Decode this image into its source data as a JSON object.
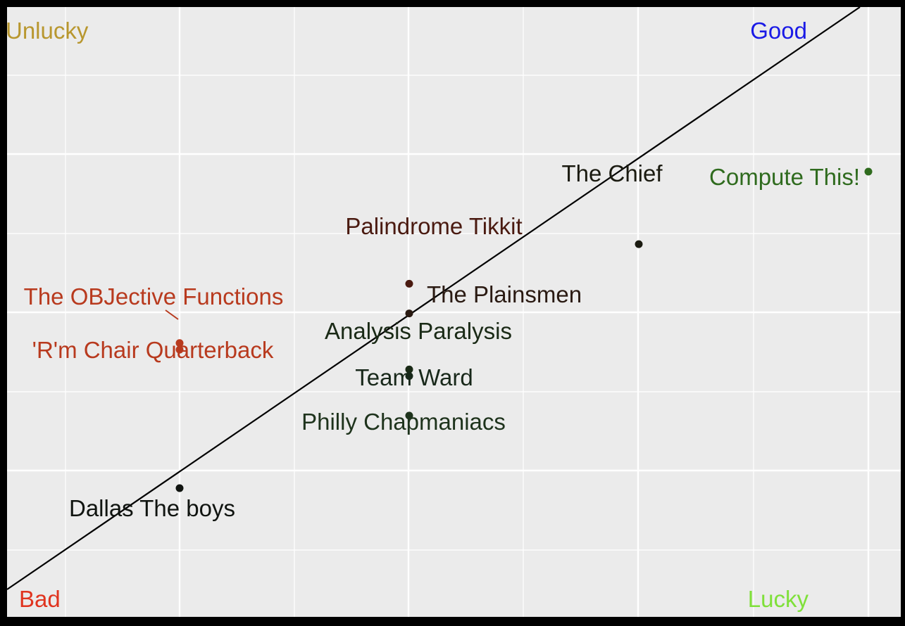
{
  "chart_data": {
    "type": "scatter",
    "title": "",
    "xlabel": "",
    "ylabel": "",
    "grid": true,
    "reference_line": {
      "slope": 1,
      "intercept": 0
    },
    "corner_labels": [
      {
        "text": "Unlucky",
        "color": "#B8972F",
        "corner": "top-left"
      },
      {
        "text": "Good",
        "color": "#1A1AE6",
        "corner": "top-right"
      },
      {
        "text": "Bad",
        "color": "#E0341F",
        "corner": "bottom-left"
      },
      {
        "text": "Lucky",
        "color": "#7FE03A",
        "corner": "bottom-right"
      }
    ],
    "points": [
      {
        "label": "Compute This!",
        "x": 10.0,
        "y": 10.3,
        "color": "#2F6B1E"
      },
      {
        "label": "The Chief",
        "x": 9.0,
        "y": 9.2,
        "color": "#1A1A10"
      },
      {
        "label": "Palindrome Tikkit",
        "x": 8.0,
        "y": 8.6,
        "color": "#4A1A10"
      },
      {
        "label": "The Plainsmen",
        "x": 8.0,
        "y": 8.15,
        "color": "#2A1A12"
      },
      {
        "label": "Analysis Paralysis",
        "x": 8.0,
        "y": 7.3,
        "color": "#1A2A16"
      },
      {
        "label": "Team Ward",
        "x": 8.0,
        "y": 7.2,
        "color": "#18281A"
      },
      {
        "label": "Philly Chapmaniacs",
        "x": 8.0,
        "y": 6.6,
        "color": "#1E331C"
      },
      {
        "label": "The OBJective Functions",
        "x": 7.0,
        "y": 7.7,
        "color": "#B83A1E"
      },
      {
        "label": "'R'm Chair Quarterback",
        "x": 7.0,
        "y": 7.6,
        "color": "#B83A1E"
      },
      {
        "label": "Dallas The boys",
        "x": 7.0,
        "y": 5.5,
        "color": "#101410"
      }
    ]
  }
}
